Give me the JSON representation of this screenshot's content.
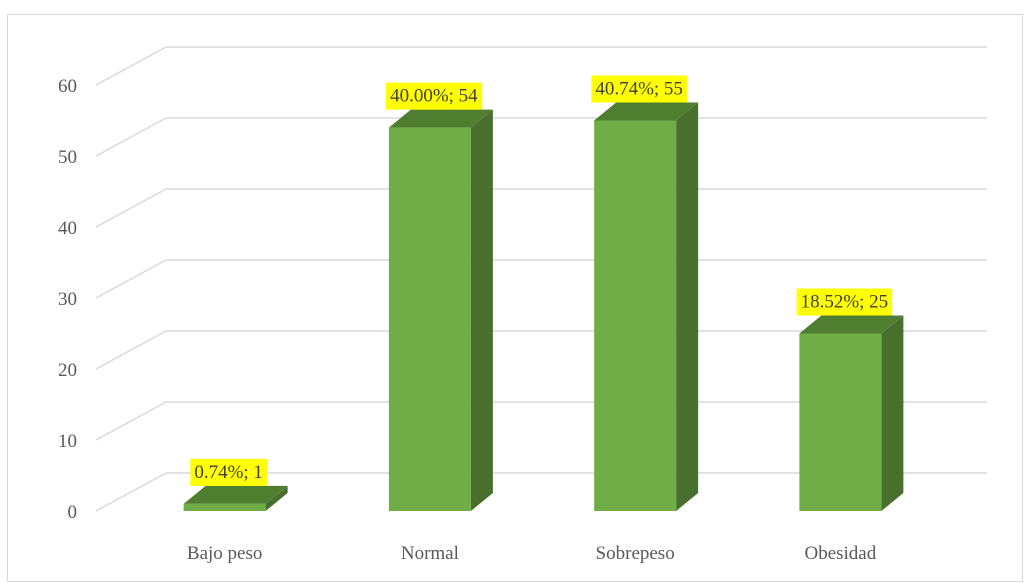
{
  "chart_data": {
    "type": "bar",
    "title": "",
    "xlabel": "",
    "ylabel": "",
    "categories": [
      "Bajo peso",
      "Normal",
      "Sobrepeso",
      "Obesidad"
    ],
    "series": [
      {
        "values": [
          1,
          54,
          55,
          25
        ]
      }
    ],
    "data_labels": [
      "0.74%; 1",
      "40.00%; 54",
      "40.74%; 55",
      "18.52%; 25"
    ],
    "percentages": [
      0.74,
      40.0,
      40.74,
      18.52
    ],
    "ylim": [
      0,
      60
    ],
    "yticks": [
      "0",
      "10",
      "20",
      "30",
      "40",
      "50",
      "60"
    ],
    "grid": true,
    "legend": "none",
    "bar_style": "3d",
    "colors": {
      "bar_front": "#70ad47",
      "bar_side": "#486f2c",
      "bar_top": "#507e31",
      "label_bg": "#ffff00",
      "grid": "#d9d9d9"
    }
  }
}
